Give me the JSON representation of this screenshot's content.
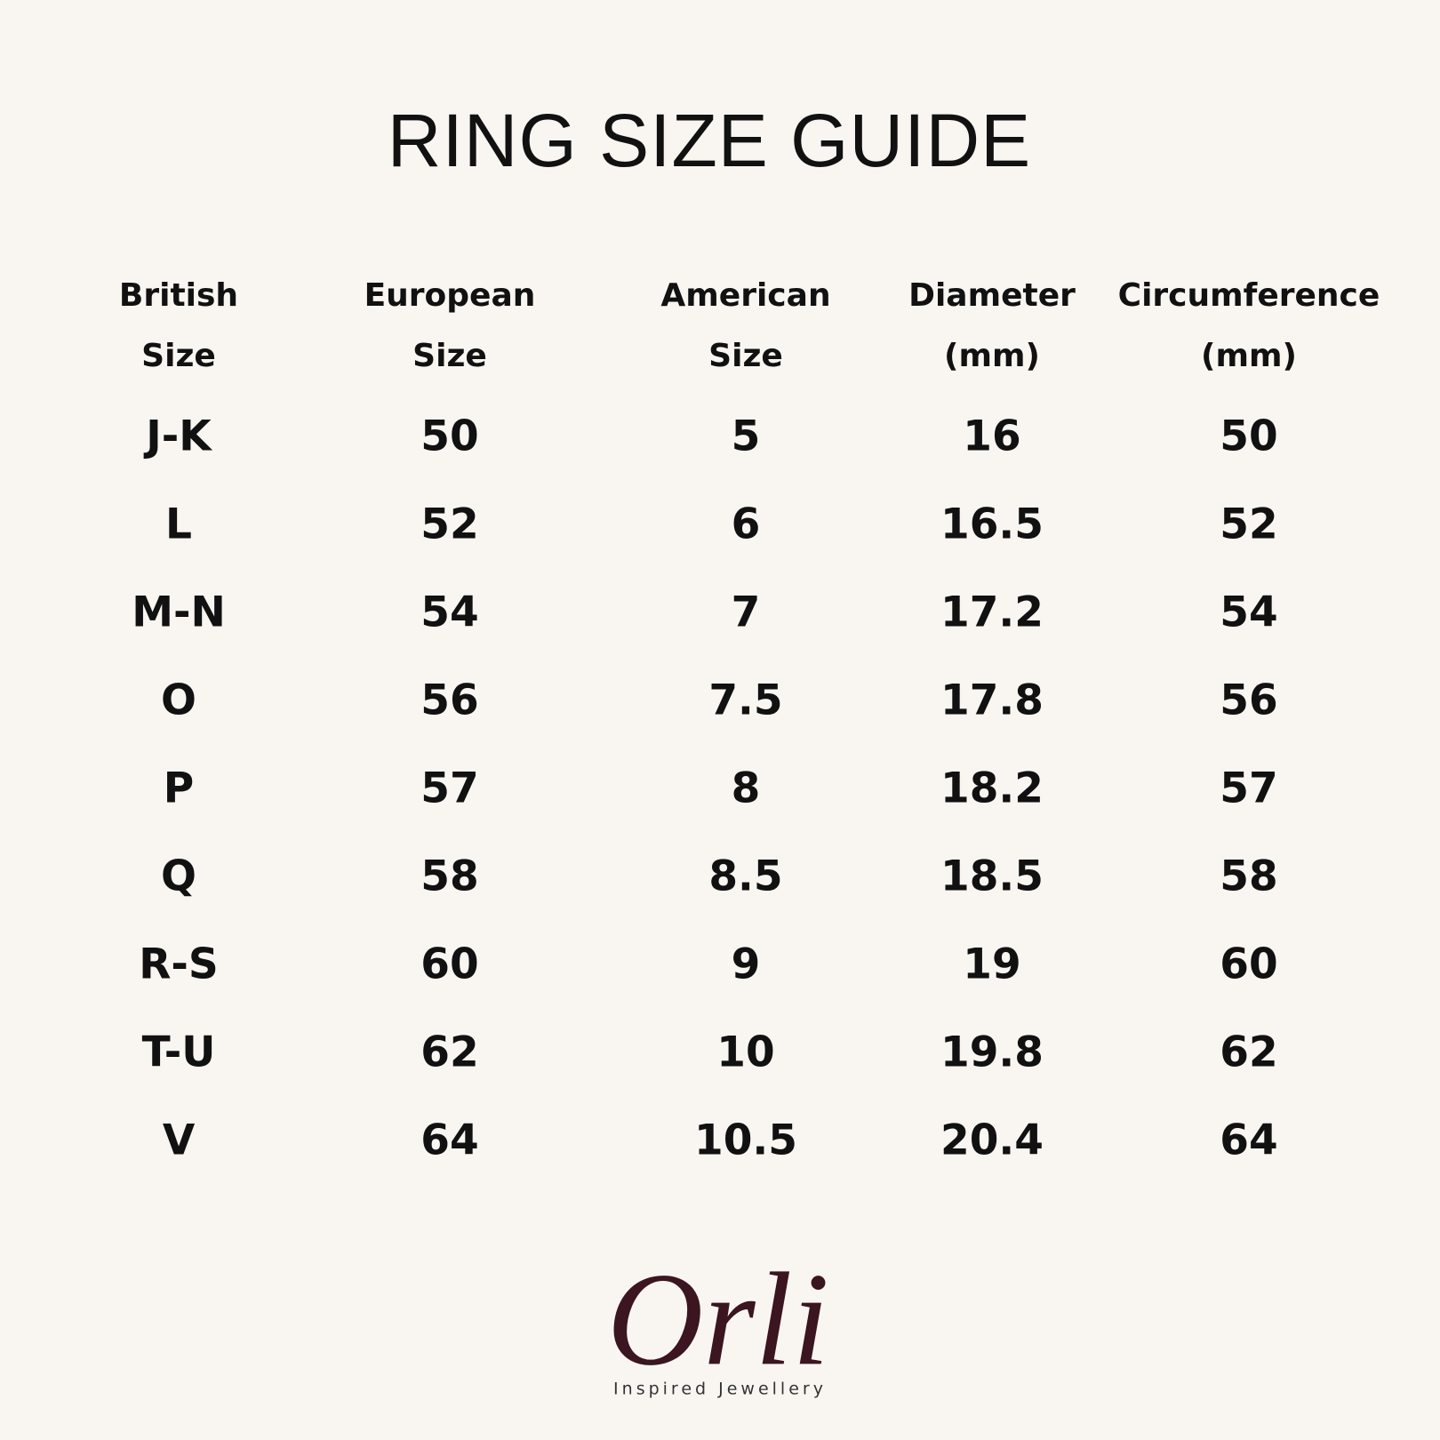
{
  "title": "RING SIZE GUIDE",
  "table": {
    "header": [
      [
        "British",
        "Size"
      ],
      [
        "European",
        "Size"
      ],
      [
        "American",
        "Size"
      ],
      [
        "Diameter",
        "(mm)"
      ],
      [
        "Circumference",
        "(mm)"
      ]
    ],
    "rows": [
      [
        "J-K",
        "50",
        "5",
        "16",
        "50"
      ],
      [
        "L",
        "52",
        "6",
        "16.5",
        "52"
      ],
      [
        "M-N",
        "54",
        "7",
        "17.2",
        "54"
      ],
      [
        "O",
        "56",
        "7.5",
        "17.8",
        "56"
      ],
      [
        "P",
        "57",
        "8",
        "18.2",
        "57"
      ],
      [
        "Q",
        "58",
        "8.5",
        "18.5",
        "58"
      ],
      [
        "R-S",
        "60",
        "9",
        "19",
        "60"
      ],
      [
        "T-U",
        "62",
        "10",
        "19.8",
        "62"
      ],
      [
        "V",
        "64",
        "10.5",
        "20.4",
        "64"
      ]
    ]
  },
  "logo": {
    "name": "Orli",
    "tagline": "Inspired Jewellery"
  }
}
